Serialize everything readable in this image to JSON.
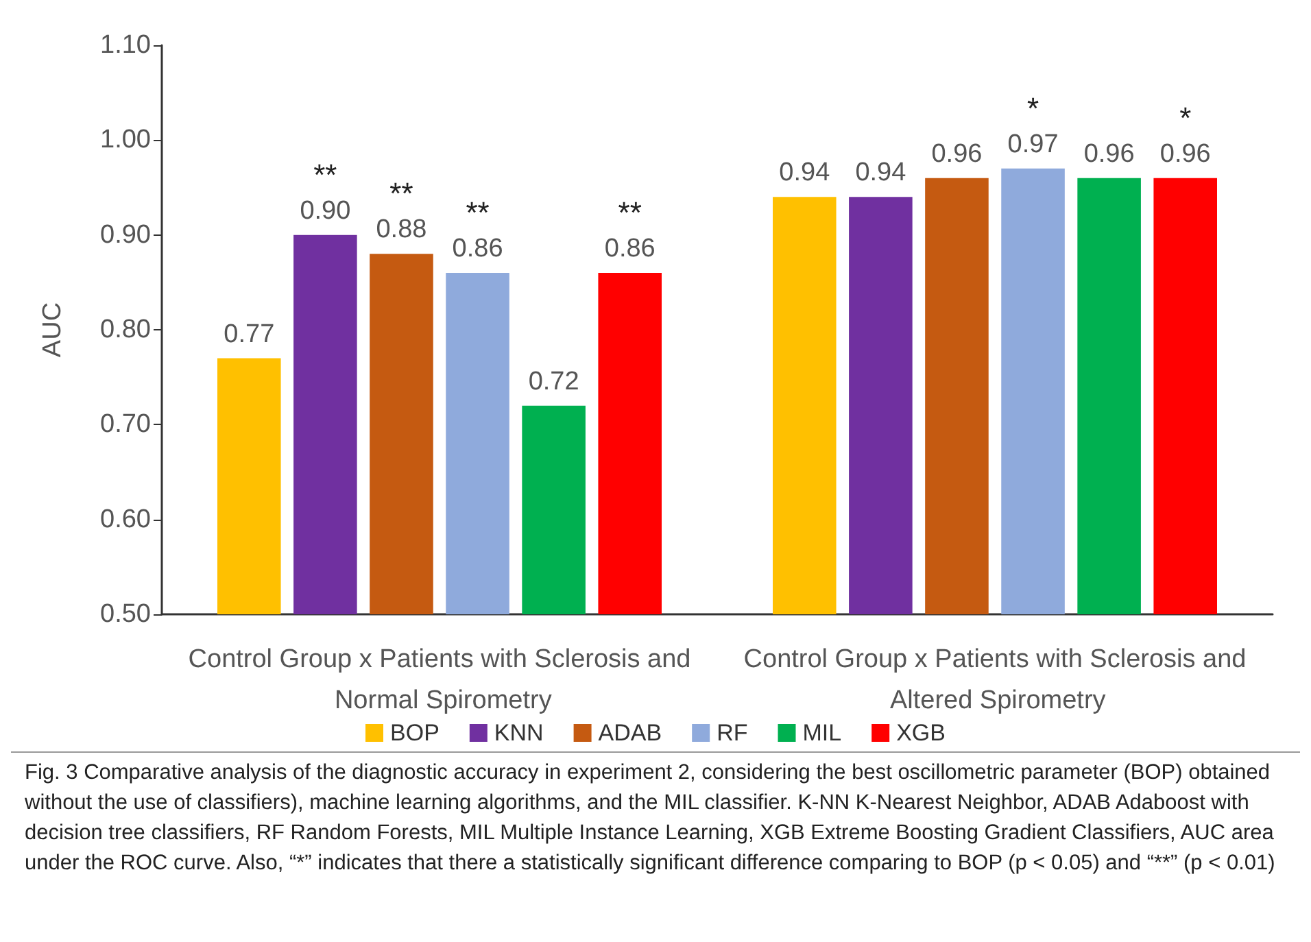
{
  "chart_data": {
    "type": "bar",
    "ylabel": "AUC",
    "categories": [
      "Control Group x Patients with Sclerosis and Normal Spirometry",
      "Control Group x Patients with Sclerosis and Altered Spirometry"
    ],
    "series": [
      {
        "name": "BOP",
        "color": "#ffc000",
        "values": [
          0.77,
          0.94
        ],
        "value_labels": [
          "0.77",
          "0.94"
        ]
      },
      {
        "name": "KNN",
        "color": "#7030a0",
        "values": [
          0.9,
          0.94
        ],
        "value_labels": [
          "**\n0.90",
          "0.94"
        ]
      },
      {
        "name": "ADAB",
        "color": "#c55a11",
        "values": [
          0.88,
          0.96
        ],
        "value_labels": [
          "**\n0.88",
          "0.96"
        ]
      },
      {
        "name": "RF",
        "color": "#8faadc",
        "values": [
          0.86,
          0.97
        ],
        "value_labels": [
          "**\n0.86",
          "*\n0.97"
        ]
      },
      {
        "name": "MIL",
        "color": "#00b050",
        "values": [
          0.72,
          0.96
        ],
        "value_labels": [
          "0.72",
          "0.96"
        ]
      },
      {
        "name": "XGB",
        "color": "#ff0000",
        "values": [
          0.86,
          0.96
        ],
        "value_labels": [
          "**\n0.86",
          "*\n0.96"
        ]
      }
    ],
    "ylim": [
      0.5,
      1.1
    ],
    "yticks": [
      {
        "value": 0.5,
        "label": "0.50"
      },
      {
        "value": 0.6,
        "label": "0.60"
      },
      {
        "value": 0.7,
        "label": "0.70"
      },
      {
        "value": 0.8,
        "label": "0.80"
      },
      {
        "value": 0.9,
        "label": "0.90"
      },
      {
        "value": 1.0,
        "label": "1.00"
      },
      {
        "value": 1.1,
        "label": "1.10"
      }
    ],
    "grid": false,
    "legend": "bottom",
    "annotations": [
      "Fig. 3 Comparative analysis of the diagnostic accuracy in experiment 2, considering the best oscillometric parameter (BOP) obtained without the use of classifiers), machine learning algorithms, and the MIL classifier. K-NN K-Nearest Neighbor, ADAB Adaboost with decision tree classifiers, RF Random Forests, MIL Multiple Instance Learning, XGB Extreme Boosting Gradient Classifiers, AUC area under the ROC curve. Also, “*” indicates that there a statistically significant difference comparing to BOP (p < 0.05) and “**” (p < 0.01)"
    ]
  }
}
